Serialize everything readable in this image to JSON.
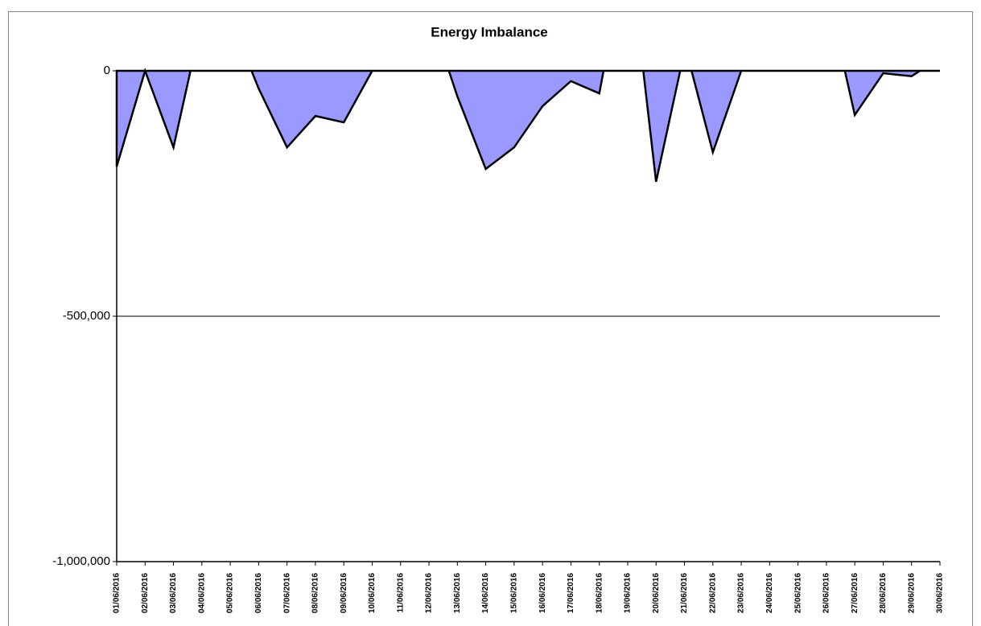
{
  "chart_data": {
    "type": "area",
    "title": "Energy Imbalance",
    "x": [
      1,
      2,
      3,
      3.6,
      5.75,
      6,
      7,
      8,
      9,
      10,
      12.7,
      13,
      14,
      15,
      16,
      17,
      18,
      18.15,
      19.55,
      20,
      20.85,
      21.25,
      22,
      23,
      26.65,
      27,
      28,
      29,
      29.3,
      30
    ],
    "values": [
      -195000,
      0,
      -156000,
      0,
      0,
      -36000,
      -156000,
      -92000,
      -105000,
      0,
      0,
      -52000,
      -200000,
      -156000,
      -72000,
      -21000,
      -46000,
      0,
      0,
      -226000,
      0,
      0,
      -166000,
      0,
      0,
      -90000,
      -5000,
      -11000,
      0,
      0
    ],
    "color": "#9999ff",
    "xlim": [
      1,
      30
    ],
    "xticks": [
      {
        "value": 1,
        "label": "01/06/2016"
      },
      {
        "value": 2,
        "label": "02/06/2016"
      },
      {
        "value": 3,
        "label": "03/06/2016"
      },
      {
        "value": 4,
        "label": "04/06/2016"
      },
      {
        "value": 5,
        "label": "05/06/2016"
      },
      {
        "value": 6,
        "label": "06/06/2016"
      },
      {
        "value": 7,
        "label": "07/06/2016"
      },
      {
        "value": 8,
        "label": "08/06/2016"
      },
      {
        "value": 9,
        "label": "09/06/2016"
      },
      {
        "value": 10,
        "label": "10/06/2016"
      },
      {
        "value": 11,
        "label": "11/06/2016"
      },
      {
        "value": 12,
        "label": "12/06/2016"
      },
      {
        "value": 13,
        "label": "13/06/2016"
      },
      {
        "value": 14,
        "label": "14/06/2016"
      },
      {
        "value": 15,
        "label": "15/06/2016"
      },
      {
        "value": 16,
        "label": "16/06/2016"
      },
      {
        "value": 17,
        "label": "17/06/2016"
      },
      {
        "value": 18,
        "label": "18/06/2016"
      },
      {
        "value": 19,
        "label": "19/06/2016"
      },
      {
        "value": 20,
        "label": "20/06/2016"
      },
      {
        "value": 21,
        "label": "21/06/2016"
      },
      {
        "value": 22,
        "label": "22/06/2016"
      },
      {
        "value": 23,
        "label": "23/06/2016"
      },
      {
        "value": 24,
        "label": "24/06/2016"
      },
      {
        "value": 25,
        "label": "25/06/2016"
      },
      {
        "value": 26,
        "label": "26/06/2016"
      },
      {
        "value": 27,
        "label": "27/06/2016"
      },
      {
        "value": 28,
        "label": "28/06/2016"
      },
      {
        "value": 29,
        "label": "29/06/2016"
      },
      {
        "value": 30,
        "label": "30/06/2016"
      }
    ],
    "ylim": [
      -1000000,
      0
    ],
    "yticks": [
      0,
      {
        "value": -500000,
        "label": "-500,000"
      },
      {
        "value": -1000000,
        "label": "-1,000,000"
      }
    ],
    "grid": true
  }
}
